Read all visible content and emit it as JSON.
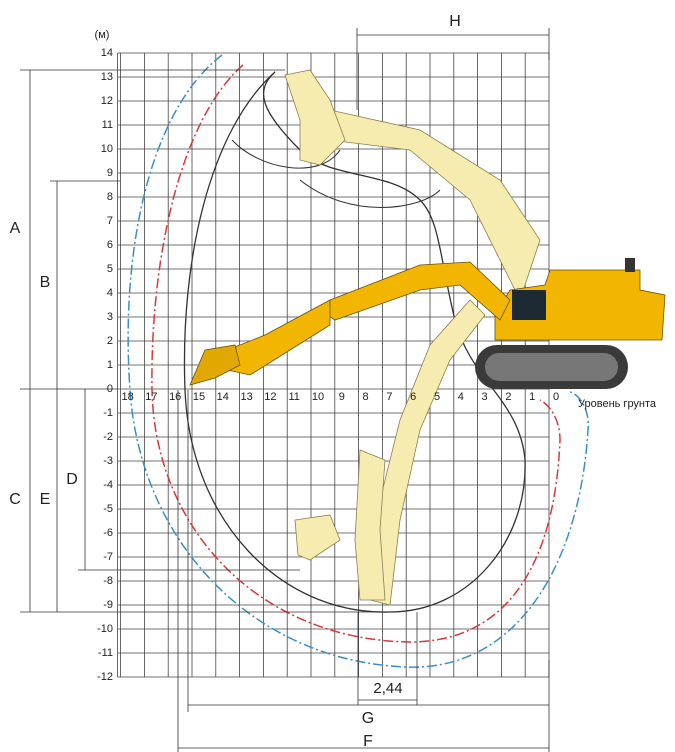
{
  "unit": "(м)",
  "y_labels": [
    "14",
    "13",
    "12",
    "11",
    "10",
    "9",
    "8",
    "7",
    "6",
    "5",
    "4",
    "3",
    "2",
    "1",
    "0",
    "-1",
    "-2",
    "-3",
    "-4",
    "-5",
    "-6",
    "-7",
    "-8",
    "-9",
    "-10",
    "-11",
    "-12"
  ],
  "x_labels": [
    "18",
    "17",
    "16",
    "15",
    "14",
    "13",
    "12",
    "11",
    "10",
    "9",
    "8",
    "7",
    "6",
    "5",
    "4",
    "3",
    "2",
    "1",
    "0"
  ],
  "ground_level": "Уровень грунта",
  "dimensions": [
    "H",
    "A",
    "B",
    "C",
    "E",
    "D",
    "G",
    "F",
    "2,44"
  ]
}
